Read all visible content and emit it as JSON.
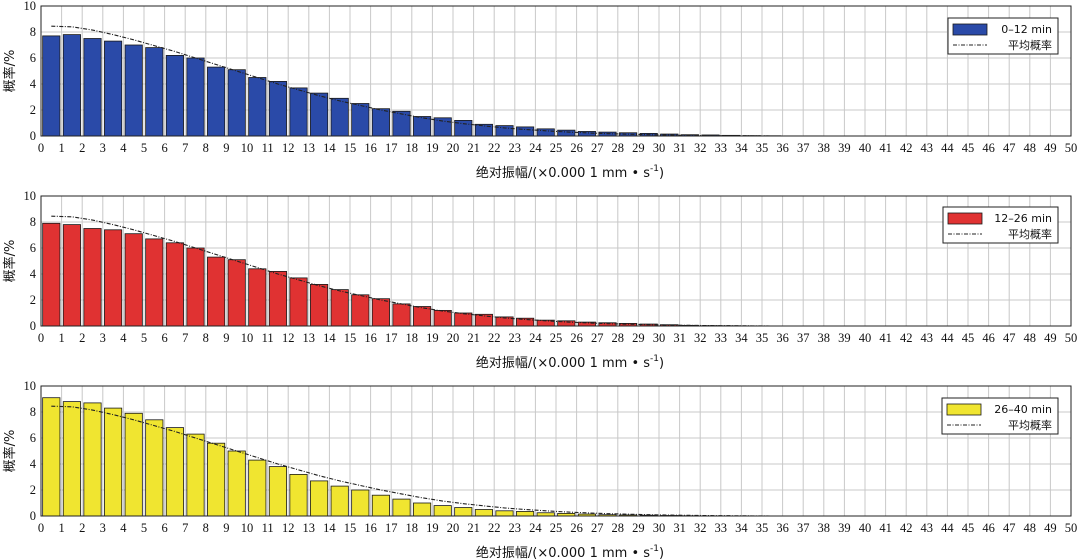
{
  "chart_data": [
    {
      "type": "bar",
      "xlabel": "绝对振幅/(×0.000 1 mm • s",
      "xlabel_sup": "-1",
      "xlabel_close": ")",
      "ylabel": "概率/%",
      "ylim": [
        0,
        10
      ],
      "xlim": [
        0,
        50
      ],
      "yticks": [
        "0",
        "2",
        "4",
        "6",
        "8",
        "10"
      ],
      "grid": true,
      "legend_position": "top-right",
      "bar_color": "#2a4aa8",
      "series": [
        {
          "name": "0–12 min",
          "values": [
            7.7,
            7.8,
            7.5,
            7.3,
            7.0,
            6.8,
            6.2,
            6.0,
            5.3,
            5.1,
            4.5,
            4.2,
            3.7,
            3.3,
            2.9,
            2.5,
            2.1,
            1.9,
            1.5,
            1.4,
            1.2,
            0.9,
            0.8,
            0.7,
            0.55,
            0.45,
            0.35,
            0.3,
            0.25,
            0.2,
            0.15,
            0.1,
            0.08,
            0.05,
            0.03,
            0.02,
            0.01,
            0.01,
            0,
            0,
            0,
            0,
            0,
            0,
            0,
            0,
            0,
            0,
            0,
            0
          ]
        },
        {
          "name": "平均概率",
          "type": "line",
          "values": [
            8.45,
            8.4,
            8.15,
            7.8,
            7.4,
            6.95,
            6.5,
            6.0,
            5.5,
            5.0,
            4.5,
            4.0,
            3.55,
            3.1,
            2.7,
            2.35,
            2.0,
            1.7,
            1.4,
            1.15,
            0.95,
            0.78,
            0.62,
            0.5,
            0.4,
            0.31,
            0.24,
            0.18,
            0.14,
            0.1,
            0.07,
            0.05,
            0.03,
            0.02,
            0.01,
            0,
            0,
            0,
            0,
            0,
            0,
            0,
            0,
            0,
            0,
            0,
            0,
            0,
            0,
            0
          ]
        }
      ]
    },
    {
      "type": "bar",
      "xlabel": "绝对振幅/(×0.000 1 mm • s",
      "xlabel_sup": "-1",
      "xlabel_close": ")",
      "ylabel": "概率/%",
      "ylim": [
        0,
        10
      ],
      "xlim": [
        0,
        50
      ],
      "yticks": [
        "0",
        "2",
        "4",
        "6",
        "8",
        "10"
      ],
      "grid": true,
      "legend_position": "top-right",
      "bar_color": "#e03232",
      "series": [
        {
          "name": "12–26 min",
          "values": [
            7.9,
            7.8,
            7.5,
            7.4,
            7.1,
            6.7,
            6.4,
            6.0,
            5.3,
            5.1,
            4.4,
            4.2,
            3.7,
            3.2,
            2.8,
            2.4,
            2.1,
            1.7,
            1.5,
            1.2,
            1.0,
            0.9,
            0.7,
            0.6,
            0.45,
            0.4,
            0.3,
            0.25,
            0.2,
            0.15,
            0.1,
            0.05,
            0.03,
            0.02,
            0.01,
            0,
            0,
            0,
            0,
            0,
            0,
            0,
            0,
            0,
            0,
            0,
            0,
            0,
            0,
            0
          ]
        },
        {
          "name": "平均概率",
          "type": "line",
          "values": [
            8.45,
            8.4,
            8.15,
            7.8,
            7.4,
            6.95,
            6.5,
            6.0,
            5.5,
            5.0,
            4.5,
            4.0,
            3.55,
            3.1,
            2.7,
            2.35,
            2.0,
            1.7,
            1.4,
            1.15,
            0.95,
            0.78,
            0.62,
            0.5,
            0.4,
            0.31,
            0.24,
            0.18,
            0.14,
            0.1,
            0.07,
            0.05,
            0.03,
            0.02,
            0.01,
            0,
            0,
            0,
            0,
            0,
            0,
            0,
            0,
            0,
            0,
            0,
            0,
            0,
            0,
            0
          ]
        }
      ]
    },
    {
      "type": "bar",
      "xlabel": "绝对振幅/(×0.000 1 mm • s",
      "xlabel_sup": "-1",
      "xlabel_close": ")",
      "ylabel": "概率/%",
      "ylim": [
        0,
        10
      ],
      "xlim": [
        0,
        50
      ],
      "yticks": [
        "0",
        "2",
        "4",
        "6",
        "8",
        "10"
      ],
      "grid": true,
      "legend_position": "top-right",
      "bar_color": "#f0e530",
      "series": [
        {
          "name": "26–40 min",
          "values": [
            9.1,
            8.8,
            8.7,
            8.3,
            7.9,
            7.4,
            6.8,
            6.3,
            5.6,
            5.0,
            4.3,
            3.8,
            3.2,
            2.7,
            2.3,
            2.0,
            1.6,
            1.3,
            1.0,
            0.8,
            0.65,
            0.5,
            0.4,
            0.35,
            0.25,
            0.2,
            0.15,
            0.1,
            0.08,
            0.06,
            0.04,
            0.02,
            0.01,
            0,
            0,
            0,
            0,
            0,
            0,
            0,
            0,
            0,
            0,
            0,
            0,
            0,
            0,
            0,
            0,
            0
          ]
        },
        {
          "name": "平均概率",
          "type": "line",
          "values": [
            8.45,
            8.4,
            8.15,
            7.8,
            7.4,
            6.95,
            6.5,
            6.0,
            5.5,
            5.0,
            4.5,
            4.0,
            3.55,
            3.1,
            2.7,
            2.35,
            2.0,
            1.7,
            1.4,
            1.15,
            0.95,
            0.78,
            0.62,
            0.5,
            0.4,
            0.31,
            0.24,
            0.18,
            0.14,
            0.1,
            0.07,
            0.05,
            0.03,
            0.02,
            0.01,
            0,
            0,
            0,
            0,
            0,
            0,
            0,
            0,
            0,
            0,
            0,
            0,
            0,
            0,
            0
          ]
        }
      ]
    }
  ]
}
